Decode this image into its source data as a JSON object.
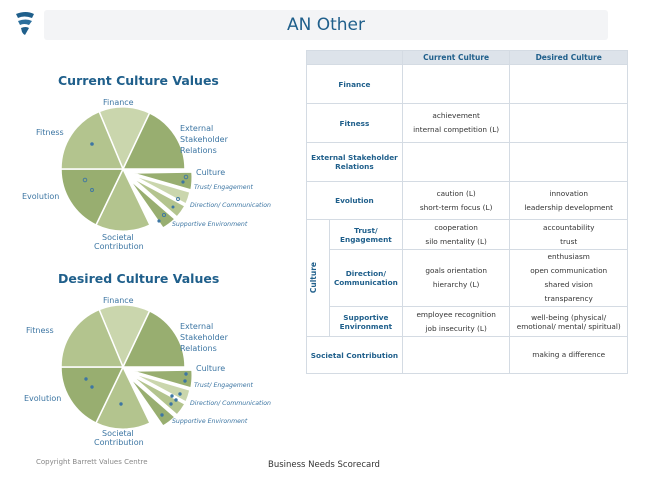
{
  "header": {
    "title": "AN Other"
  },
  "logo": {
    "icon": "barrett-logo-icon",
    "color": "#1f5f8b"
  },
  "colors": {
    "accent": "#1f5f8b",
    "wedge_dark": "#98ae70",
    "wedge_mid": "#b3c48e",
    "wedge_light": "#cad6ad",
    "header_bg": "#dde3ea"
  },
  "current_chart": {
    "title": "Current Culture Values",
    "labels": {
      "finance": "Finance",
      "external": [
        "External",
        "Stakeholder",
        "Relations"
      ],
      "culture": "Culture",
      "trust": "Trust/ Engagement",
      "direction": "Direction/ Communication",
      "supportive": "Supportive Environment",
      "societal": [
        "Societal",
        "Contribution"
      ],
      "evolution": "Evolution",
      "fitness": "Fitness"
    }
  },
  "desired_chart": {
    "title": "Desired Culture Values",
    "labels": {
      "finance": "Finance",
      "external": [
        "External",
        "Stakeholder",
        "Relations"
      ],
      "culture": "Culture",
      "trust": "Trust/ Engagement",
      "direction": "Direction/ Communication",
      "supportive": "Supportive Environment",
      "societal": [
        "Societal",
        "Contribution"
      ],
      "evolution": "Evolution",
      "fitness": "Fitness"
    }
  },
  "table": {
    "col_current": "Current Culture",
    "col_desired": "Desired Culture",
    "culture_group": "Culture",
    "rows": {
      "finance": {
        "label": "Finance",
        "current": [],
        "desired": []
      },
      "fitness": {
        "label": "Fitness",
        "current": [
          "achievement",
          "internal competition (L)"
        ],
        "desired": []
      },
      "external": {
        "label": "External Stakeholder Relations",
        "current": [],
        "desired": []
      },
      "evolution": {
        "label": "Evolution",
        "current": [
          "caution (L)",
          "short-term focus (L)"
        ],
        "desired": [
          "innovation",
          "leadership development"
        ]
      },
      "trust": {
        "label": "Trust/ Engagement",
        "current": [
          "cooperation",
          "silo mentality (L)"
        ],
        "desired": [
          "accountability",
          "trust"
        ]
      },
      "direction": {
        "label": "Direction/ Communication",
        "current": [
          "goals orientation",
          "hierarchy (L)"
        ],
        "desired": [
          "enthusiasm",
          "open communication",
          "shared vision",
          "transparency"
        ]
      },
      "supportive": {
        "label": "Supportive Environment",
        "current": [
          "employee recognition",
          "job insecurity (L)"
        ],
        "desired": [
          "well-being (physical/ emotional/ mental/ spiritual)"
        ]
      },
      "societal": {
        "label": "Societal Contribution",
        "current": [],
        "desired": [
          "making a difference"
        ]
      }
    }
  },
  "footer": {
    "copyright": "Copyright Barrett Values Centre",
    "caption": "Business Needs Scorecard"
  }
}
